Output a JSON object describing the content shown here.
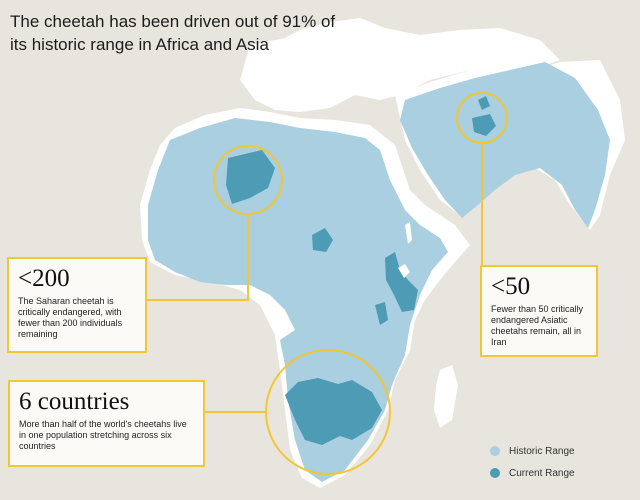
{
  "title": "The cheetah has been driven out of 91% of its historic range in Africa and Asia",
  "colors": {
    "background": "#e8e5de",
    "land": "#ffffff",
    "historic_range": "#a9cfe0",
    "current_range": "#4e9bb5",
    "highlight": "#f2c634"
  },
  "callouts": {
    "saharan": {
      "stat": "<200",
      "text": "The Saharan cheetah is critically endangered, with fewer than 200 individuals remaining"
    },
    "asiatic": {
      "stat": "<50",
      "text": "Fewer than 50 critically endangered Asiatic cheetahs remain, all in Iran"
    },
    "southern": {
      "stat": "6 countries",
      "text": "More than half of the world's cheetahs live in one population stretching across six countries"
    }
  },
  "legend": {
    "historic_label": "Historic Range",
    "current_label": "Current Range"
  }
}
